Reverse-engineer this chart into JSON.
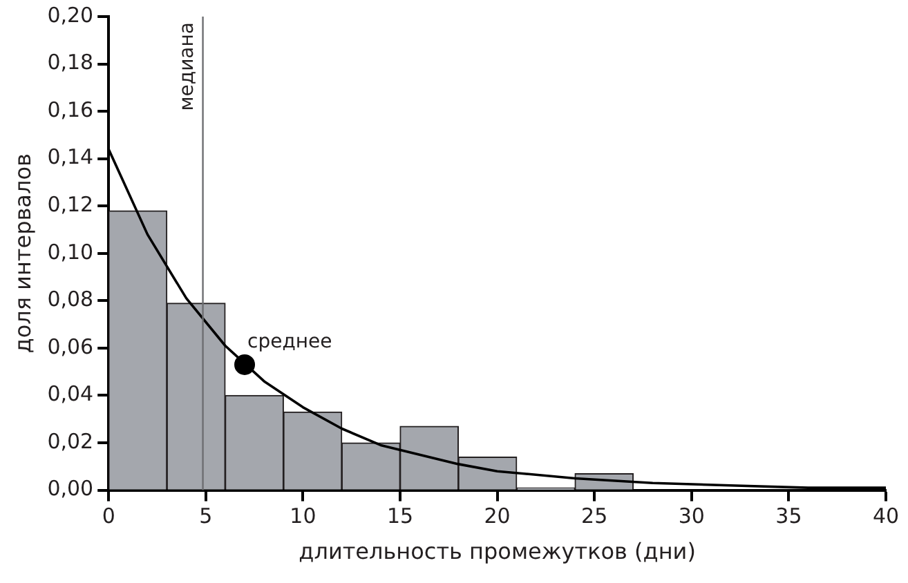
{
  "chart_data": {
    "type": "histogram",
    "xlabel": "длительность промежутков (дни)",
    "ylabel": "доля интервалов",
    "bins": [
      0,
      3,
      6,
      9,
      12,
      15,
      18,
      21,
      24,
      27
    ],
    "values": [
      0.118,
      0.079,
      0.04,
      0.033,
      0.02,
      0.027,
      0.014,
      0.001,
      0.007
    ],
    "color": "#a4a7ad",
    "series": [
      {
        "type": "line",
        "color": "#000000",
        "x": [
          0,
          2,
          4,
          6,
          8,
          10,
          12,
          14,
          16,
          18,
          20,
          24,
          28,
          32,
          36,
          40
        ],
        "values": [
          0.144,
          0.108,
          0.081,
          0.061,
          0.046,
          0.035,
          0.026,
          0.019,
          0.015,
          0.011,
          0.008,
          0.005,
          0.003,
          0.002,
          0.001,
          0.001
        ]
      },
      {
        "type": "scatter",
        "name": "среднее",
        "color": "#000000",
        "x": [
          7
        ],
        "values": [
          0.053
        ]
      }
    ],
    "ref_lines": [
      {
        "axis": "x",
        "value": 4.85,
        "label": "медиана",
        "color": "#6d6e71"
      }
    ],
    "xlim": [
      0,
      40
    ],
    "xticks": [
      0,
      5,
      10,
      15,
      20,
      25,
      30,
      35,
      40
    ],
    "ylim": [
      0,
      0.2
    ],
    "yticks": [
      {
        "value": 0,
        "label": "0,00"
      },
      {
        "value": 0.02,
        "label": "0,02"
      },
      {
        "value": 0.04,
        "label": "0,04"
      },
      {
        "value": 0.06,
        "label": "0,06"
      },
      {
        "value": 0.08,
        "label": "0,08"
      },
      {
        "value": 0.1,
        "label": "0,10"
      },
      {
        "value": 0.12,
        "label": "0,12"
      },
      {
        "value": 0.14,
        "label": "0,14"
      },
      {
        "value": 0.16,
        "label": "0,16"
      },
      {
        "value": 0.18,
        "label": "0,18"
      },
      {
        "value": 0.2,
        "label": "0,20"
      }
    ],
    "grid": false,
    "legend": false
  }
}
